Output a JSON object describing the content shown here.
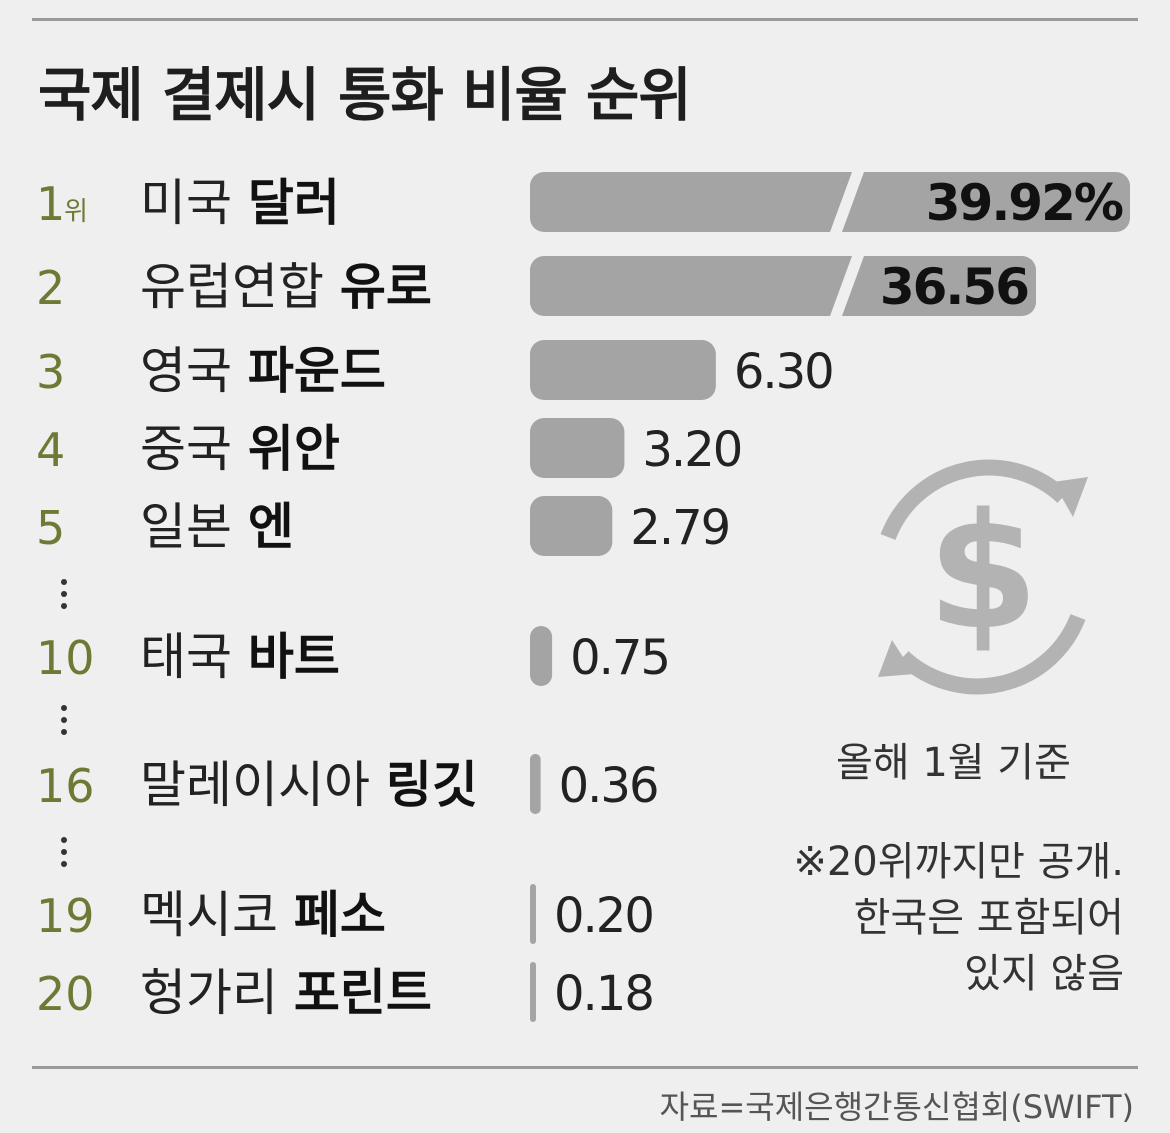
{
  "title": "국제 결제시 통화 비율 순위",
  "rank_suffix": "위",
  "note_date": "올해 1월 기준",
  "note_lines": [
    "※20위까지만 공개.",
    "한국은 포함되어",
    "있지 않음"
  ],
  "source": "자료=국제은행간통신협회(SWIFT)",
  "icon": "dollar-exchange-icon",
  "colors": {
    "bar": "#a4a4a4",
    "rank": "#6c7a35",
    "icon": "#b3b3b3"
  },
  "chart_data": {
    "type": "bar",
    "orientation": "horizontal",
    "title": "국제 결제시 통화 비율 순위",
    "axis_break": true,
    "categories": [
      "미국 달러",
      "유럽연합 유로",
      "영국 파운드",
      "중국 위안",
      "일본 엔",
      "태국 바트",
      "말레이시아 링깃",
      "멕시코 페소",
      "헝가리 포린트"
    ],
    "rows": [
      {
        "rank": "1",
        "country": "미국",
        "currency": "달러",
        "value": 39.92,
        "label": "39.92%"
      },
      {
        "rank": "2",
        "country": "유럽연합",
        "currency": "유로",
        "value": 36.56,
        "label": "36.56"
      },
      {
        "rank": "3",
        "country": "영국",
        "currency": "파운드",
        "value": 6.3,
        "label": "6.30"
      },
      {
        "rank": "4",
        "country": "중국",
        "currency": "위안",
        "value": 3.2,
        "label": "3.20"
      },
      {
        "rank": "5",
        "country": "일본",
        "currency": "엔",
        "value": 2.79,
        "label": "2.79"
      },
      {
        "rank": "10",
        "country": "태국",
        "currency": "바트",
        "value": 0.75,
        "label": "0.75"
      },
      {
        "rank": "16",
        "country": "말레이시아",
        "currency": "링깃",
        "value": 0.36,
        "label": "0.36"
      },
      {
        "rank": "19",
        "country": "멕시코",
        "currency": "페소",
        "value": 0.2,
        "label": "0.20"
      },
      {
        "rank": "20",
        "country": "헝가리",
        "currency": "포린트",
        "value": 0.18,
        "label": "0.18"
      }
    ],
    "ellipsis_after_ranks": [
      "5",
      "10",
      "16"
    ]
  }
}
